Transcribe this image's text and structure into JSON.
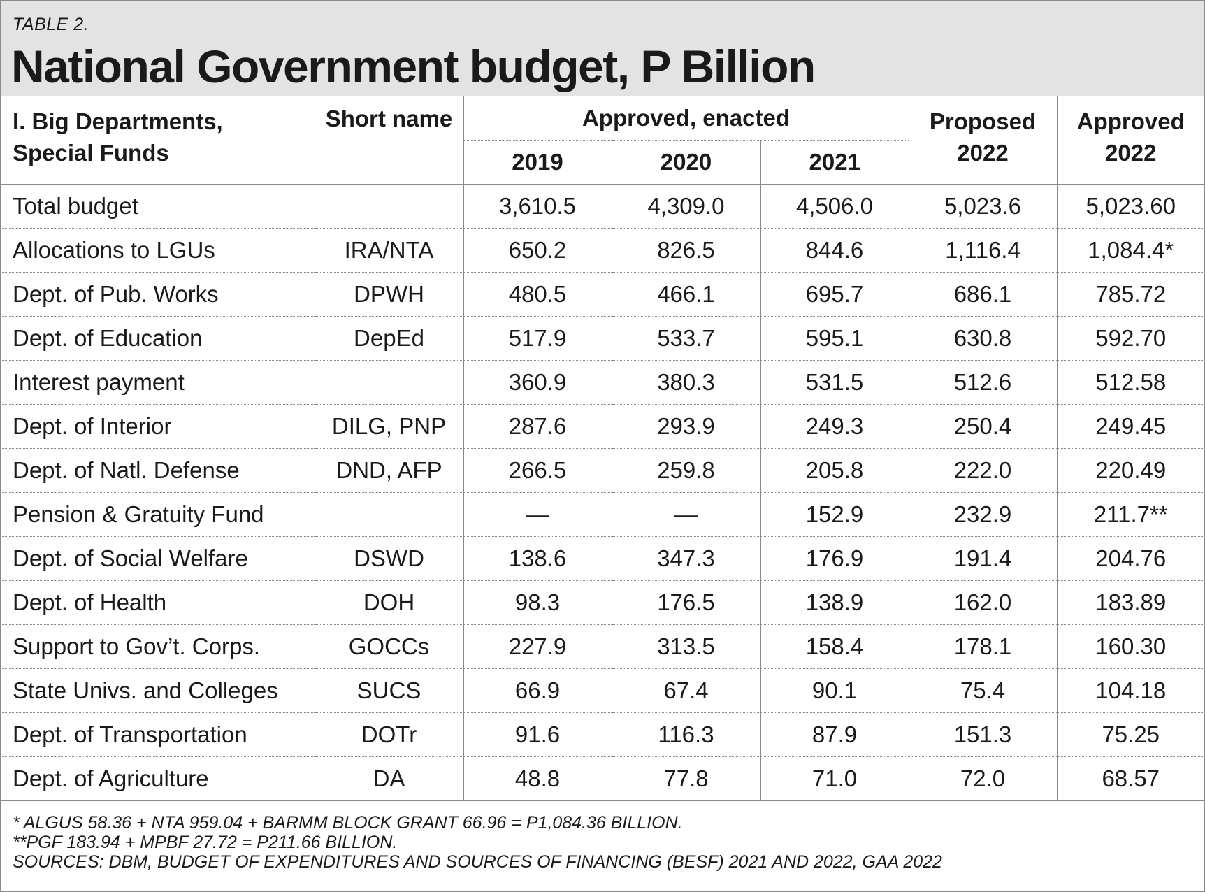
{
  "header": {
    "label": "TABLE 2.",
    "title": "National Government budget, P Billion"
  },
  "columns": {
    "name_line1": "I. Big Departments,",
    "name_line2": "Special Funds",
    "short": "Short name",
    "group": "Approved, enacted",
    "years": [
      "2019",
      "2020",
      "2021"
    ],
    "proposed_line1": "Proposed",
    "proposed_line2": "2022",
    "approved_line1": "Approved",
    "approved_line2": "2022"
  },
  "rows": [
    {
      "name": "Total budget",
      "short": "",
      "y2019": "3,610.5",
      "y2020": "4,309.0",
      "y2021": "4,506.0",
      "proposed": "5,023.6",
      "approved": "5,023.60"
    },
    {
      "name": "Allocations to LGUs",
      "short": "IRA/NTA",
      "y2019": "650.2",
      "y2020": "826.5",
      "y2021": "844.6",
      "proposed": "1,116.4",
      "approved": "1,084.4*"
    },
    {
      "name": "Dept. of Pub. Works",
      "short": "DPWH",
      "y2019": "480.5",
      "y2020": "466.1",
      "y2021": "695.7",
      "proposed": "686.1",
      "approved": "785.72"
    },
    {
      "name": "Dept. of Education",
      "short": "DepEd",
      "y2019": "517.9",
      "y2020": "533.7",
      "y2021": "595.1",
      "proposed": "630.8",
      "approved": "592.70"
    },
    {
      "name": "Interest payment",
      "short": "",
      "y2019": "360.9",
      "y2020": "380.3",
      "y2021": "531.5",
      "proposed": "512.6",
      "approved": "512.58"
    },
    {
      "name": "Dept. of Interior",
      "short": "DILG, PNP",
      "y2019": "287.6",
      "y2020": "293.9",
      "y2021": "249.3",
      "proposed": "250.4",
      "approved": "249.45"
    },
    {
      "name": "Dept. of Natl. Defense",
      "short": "DND, AFP",
      "y2019": "266.5",
      "y2020": "259.8",
      "y2021": "205.8",
      "proposed": "222.0",
      "approved": "220.49"
    },
    {
      "name": "Pension & Gratuity Fund",
      "short": "",
      "y2019": "—",
      "y2020": "—",
      "y2021": "152.9",
      "proposed": "232.9",
      "approved": "211.7**"
    },
    {
      "name": "Dept. of Social Welfare",
      "short": "DSWD",
      "y2019": "138.6",
      "y2020": "347.3",
      "y2021": "176.9",
      "proposed": "191.4",
      "approved": "204.76"
    },
    {
      "name": "Dept. of Health",
      "short": "DOH",
      "y2019": "98.3",
      "y2020": "176.5",
      "y2021": "138.9",
      "proposed": "162.0",
      "approved": "183.89"
    },
    {
      "name": "Support to Gov’t. Corps.",
      "short": "GOCCs",
      "y2019": "227.9",
      "y2020": "313.5",
      "y2021": "158.4",
      "proposed": "178.1",
      "approved": "160.30"
    },
    {
      "name": "State Univs. and Colleges",
      "short": "SUCS",
      "y2019": "66.9",
      "y2020": "67.4",
      "y2021": "90.1",
      "proposed": "75.4",
      "approved": "104.18"
    },
    {
      "name": "Dept. of Transportation",
      "short": "DOTr",
      "y2019": "91.6",
      "y2020": "116.3",
      "y2021": "87.9",
      "proposed": "151.3",
      "approved": "75.25"
    },
    {
      "name": "Dept. of Agriculture",
      "short": "DA",
      "y2019": "48.8",
      "y2020": "77.8",
      "y2021": "71.0",
      "proposed": "72.0",
      "approved": "68.57"
    }
  ],
  "footnotes": [
    "* ALGUS 58.36 + NTA 959.04 + BARMM BLOCK GRANT 66.96 = P1,084.36 BILLION.",
    "**PGF 183.94 + MPBF 27.72 = P211.66 BILLION.",
    "SOURCES: DBM, BUDGET OF EXPENDITURES AND SOURCES OF FINANCING (BESF) 2021 AND 2022, GAA 2022"
  ]
}
